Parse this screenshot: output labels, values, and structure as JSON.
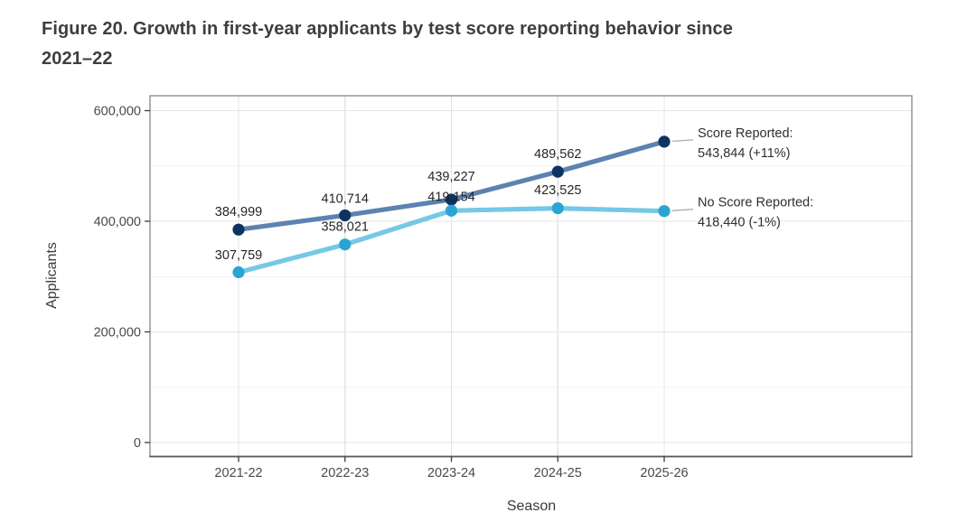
{
  "title": {
    "line1": "Figure 20. Growth in first-year applicants by test score reporting behavior since",
    "line2": "2021–22",
    "full": "Figure 20. Growth in first-year applicants by test score reporting behavior since 2021–22"
  },
  "chart_data": {
    "type": "line",
    "title": "Figure 20. Growth in first-year applicants by test score reporting behavior since 2021–22",
    "xlabel": "Season",
    "ylabel": "Applicants",
    "categories": [
      "2021-22",
      "2022-23",
      "2023-24",
      "2024-25",
      "2025-26"
    ],
    "series": [
      {
        "name": "Score Reported",
        "values": [
          384999,
          410714,
          439227,
          489562,
          543844
        ],
        "point_labels": [
          "384,999",
          "410,714",
          "439,227",
          "489,562",
          null
        ],
        "end_label_line1": "Score Reported:",
        "end_label_line2": "543,844 (+11%)",
        "line_color": "#5e82b0",
        "point_color": "#0d3363"
      },
      {
        "name": "No Score Reported",
        "values": [
          307759,
          358021,
          419154,
          423525,
          418440
        ],
        "point_labels": [
          "307,759",
          "358,021",
          "419,154",
          "423,525",
          null
        ],
        "end_label_line1": "No Score Reported:",
        "end_label_line2": "418,440 (-1%)",
        "line_color": "#76c8e5",
        "point_color": "#2aa5d3"
      }
    ],
    "ylim": [
      0,
      620000
    ],
    "yticks": {
      "values": [
        0,
        200000,
        400000,
        600000
      ],
      "labels": [
        "0",
        "200,000",
        "400,000",
        "600,000"
      ]
    },
    "minor_ytick_values": [
      100000,
      300000,
      500000
    ],
    "grid": {
      "horizontal": "major+minor",
      "vertical": "major"
    },
    "legend_position": "end-of-line-labels"
  },
  "colors": {
    "title_text": "#3e3e3e",
    "tick_label": "#4a4a4a",
    "data_label": "#262626",
    "end_label": "#2f2f2f",
    "axis_title": "#3a3a3a",
    "grid_major": "#e4e4e4",
    "grid_minor": "#f1f1f1",
    "panel_border": "#8f8f8f",
    "axis_line": "#5a5a5a",
    "leader_line": "#a9a9a9",
    "background": "#ffffff"
  }
}
